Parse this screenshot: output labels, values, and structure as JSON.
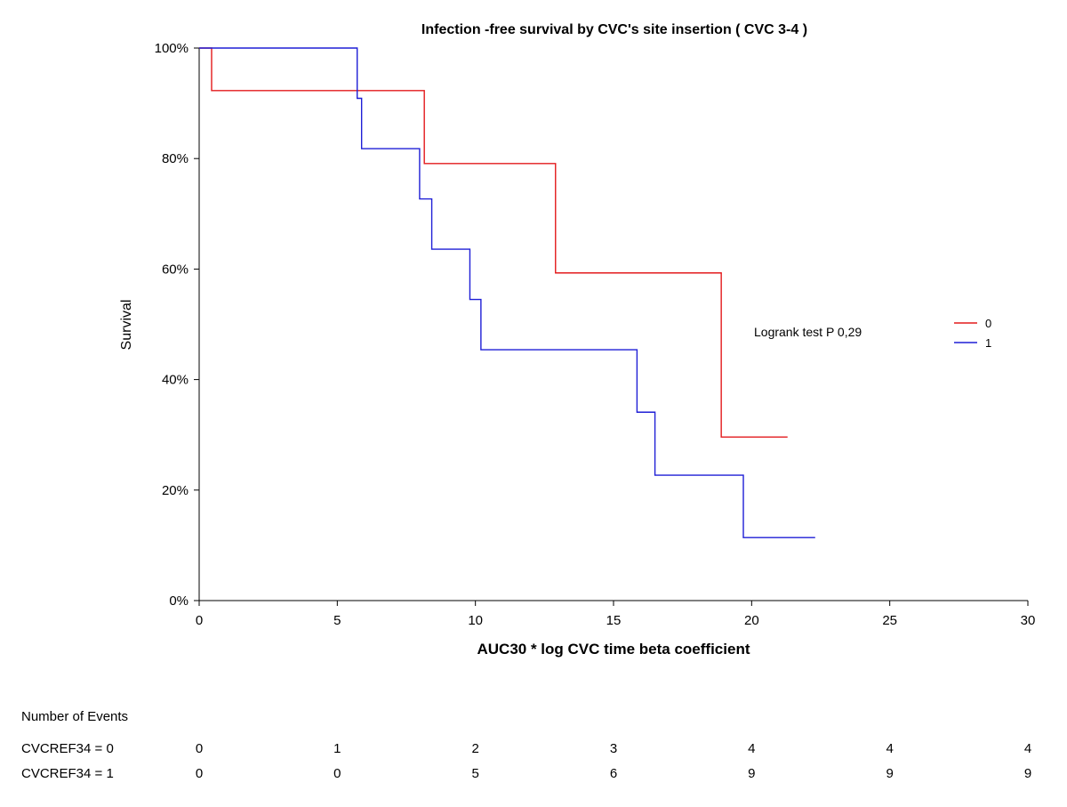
{
  "chart_data": {
    "type": "line",
    "subtype": "kaplan-meier step",
    "title": "Infection -free survival  by CVC's site insertion ( CVC 3-4 )",
    "xlabel": "AUC30 * log CVC time beta coefficient",
    "ylabel": "Survival",
    "xlim": [
      0,
      30
    ],
    "ylim": [
      0,
      100
    ],
    "xticks": [
      "0",
      "5",
      "10",
      "15",
      "20",
      "25",
      "30"
    ],
    "yticks": [
      "0%",
      "20%",
      "40%",
      "60%",
      "80%",
      "100%"
    ],
    "grid": false,
    "legend_position": "right",
    "annotation": "Logrank test P 0,29",
    "series": [
      {
        "name": "0",
        "color": "#e31a1c",
        "steps": [
          [
            0,
            100
          ],
          [
            0.45,
            92.3
          ],
          [
            8.15,
            79.1
          ],
          [
            12.9,
            59.3
          ],
          [
            18.9,
            29.6
          ]
        ],
        "end_x": 21.3
      },
      {
        "name": "1",
        "color": "#1f1fd6",
        "steps": [
          [
            0,
            100
          ],
          [
            5.72,
            90.9
          ],
          [
            5.88,
            81.8
          ],
          [
            7.98,
            72.7
          ],
          [
            8.42,
            63.6
          ],
          [
            9.8,
            54.5
          ],
          [
            10.2,
            45.4
          ],
          [
            15.85,
            34.1
          ],
          [
            16.5,
            22.7
          ],
          [
            19.7,
            11.4
          ]
        ],
        "end_x": 22.3
      }
    ]
  },
  "risk_table": {
    "heading": "Number of Events",
    "rows": [
      {
        "label": "CVCREF34 = 0",
        "values": [
          "0",
          "1",
          "2",
          "3",
          "4",
          "4",
          "4"
        ]
      },
      {
        "label": "CVCREF34 = 1",
        "values": [
          "0",
          "0",
          "5",
          "6",
          "9",
          "9",
          "9"
        ]
      }
    ]
  }
}
